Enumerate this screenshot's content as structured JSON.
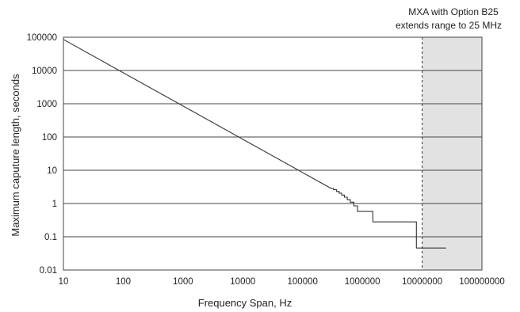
{
  "chart_data": {
    "type": "line",
    "title": "",
    "xlabel": "Frequency Span, Hz",
    "ylabel": "Maximum caputure length, seconds",
    "x_scale": "log",
    "y_scale": "log",
    "xlim": [
      10,
      100000000
    ],
    "ylim": [
      0.01,
      100000
    ],
    "x_ticks": [
      "10",
      "100",
      "1000",
      "10000",
      "100000",
      "1000000",
      "10000000",
      "100000000"
    ],
    "y_ticks": [
      "100000",
      "10000",
      "1000",
      "100",
      "10",
      "1",
      "0.1",
      "0.01"
    ],
    "grid": "horizontal",
    "series": [
      {
        "name": "",
        "color": "#333333",
        "x": [
          10,
          300000,
          330000,
          330000,
          370000,
          370000,
          410000,
          410000,
          450000,
          450000,
          500000,
          500000,
          560000,
          560000,
          630000,
          630000,
          720000,
          720000,
          830000,
          830000,
          950000,
          950000,
          1500000,
          1500000,
          8000000,
          8000000,
          25000000
        ],
        "y": [
          86000,
          2.85,
          2.85,
          2.6,
          2.6,
          2.3,
          2.3,
          2.05,
          2.05,
          1.8,
          1.8,
          1.55,
          1.55,
          1.3,
          1.3,
          1.1,
          1.1,
          0.85,
          0.85,
          0.58,
          0.58,
          0.58,
          0.58,
          0.28,
          0.28,
          0.046,
          0.046
        ]
      }
    ],
    "shaded_region": {
      "x_start": 10000000,
      "x_end": 100000000,
      "color": "#e2e2e2",
      "label_lines": [
        "MXA with Option B25",
        "extends range to 25 MHz"
      ]
    }
  }
}
